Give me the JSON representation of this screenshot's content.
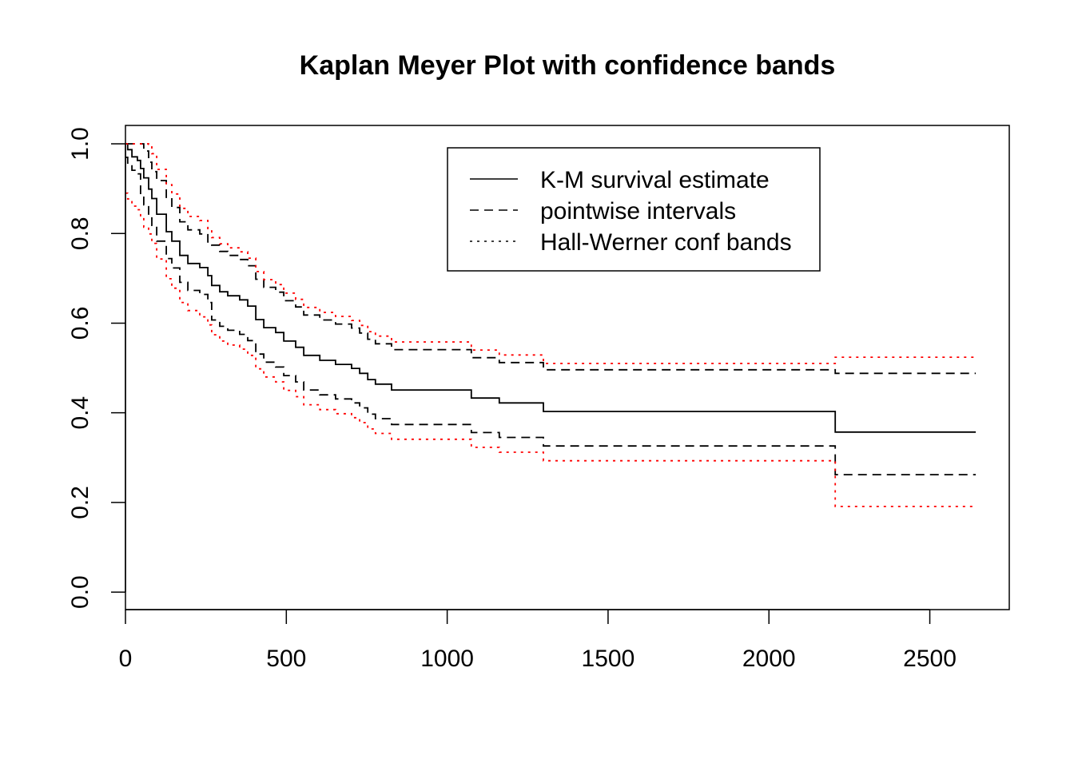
{
  "chart_data": {
    "type": "line",
    "title": "Kaplan Meyer Plot with confidence bands",
    "xlabel": "",
    "ylabel": "",
    "xlim": [
      0,
      2747
    ],
    "ylim": [
      -0.039,
      1.041
    ],
    "x_ticks": [
      0,
      500,
      1000,
      1500,
      2000,
      2500
    ],
    "x_tick_labels": [
      "0",
      "500",
      "1000",
      "1500",
      "2000",
      "2500"
    ],
    "y_ticks": [
      0,
      0.2,
      0.4,
      0.6,
      0.8,
      1.0
    ],
    "y_tick_labels": [
      "0.0",
      "0.2",
      "0.4",
      "0.6",
      "0.8",
      "1.0"
    ],
    "grid": false,
    "legend_position": "top-right",
    "step_times": [
      0,
      7,
      20,
      37,
      47,
      57,
      72,
      82,
      97,
      127,
      144,
      169,
      194,
      231,
      256,
      268,
      293,
      318,
      355,
      380,
      405,
      430,
      467,
      492,
      529,
      554,
      604,
      653,
      703,
      728,
      753,
      777,
      827,
      1075,
      1162,
      1299,
      2206
    ],
    "end_time": 2643,
    "series": [
      {
        "name": "K-M survival estimate",
        "style": "solid",
        "color": "#000000",
        "values": [
          1.0,
          0.987,
          0.971,
          0.963,
          0.945,
          0.924,
          0.899,
          0.878,
          0.843,
          0.804,
          0.783,
          0.751,
          0.733,
          0.724,
          0.706,
          0.684,
          0.67,
          0.661,
          0.652,
          0.638,
          0.608,
          0.59,
          0.579,
          0.56,
          0.546,
          0.528,
          0.517,
          0.508,
          0.499,
          0.488,
          0.474,
          0.464,
          0.451,
          0.433,
          0.422,
          0.403,
          0.357
        ]
      },
      {
        "name": "pointwise intervals (upper)",
        "style": "dashed",
        "color": "#000000",
        "values": [
          1,
          1,
          1,
          1,
          1,
          0.984,
          0.959,
          0.938,
          0.918,
          0.879,
          0.858,
          0.826,
          0.808,
          0.799,
          0.781,
          0.774,
          0.76,
          0.751,
          0.742,
          0.728,
          0.698,
          0.68,
          0.669,
          0.65,
          0.636,
          0.618,
          0.607,
          0.598,
          0.589,
          0.578,
          0.564,
          0.554,
          0.541,
          0.523,
          0.512,
          0.496,
          0.488
        ]
      },
      {
        "name": "pointwise intervals (lower)",
        "style": "dashed",
        "color": "#000000",
        "values": [
          0.97,
          0.957,
          0.941,
          0.933,
          0.885,
          0.864,
          0.839,
          0.818,
          0.783,
          0.744,
          0.723,
          0.691,
          0.673,
          0.664,
          0.646,
          0.607,
          0.593,
          0.584,
          0.575,
          0.561,
          0.531,
          0.513,
          0.502,
          0.483,
          0.469,
          0.451,
          0.44,
          0.431,
          0.422,
          0.411,
          0.397,
          0.387,
          0.374,
          0.356,
          0.345,
          0.326,
          0.262
        ]
      },
      {
        "name": "Hall-Werner conf bands (upper)",
        "style": "dotted",
        "color": "#ff0000",
        "values": [
          1,
          1,
          1,
          1,
          1,
          1,
          0.999,
          0.978,
          0.943,
          0.909,
          0.888,
          0.856,
          0.838,
          0.829,
          0.811,
          0.791,
          0.777,
          0.768,
          0.759,
          0.745,
          0.715,
          0.697,
          0.686,
          0.667,
          0.653,
          0.635,
          0.624,
          0.615,
          0.606,
          0.595,
          0.581,
          0.571,
          0.558,
          0.54,
          0.529,
          0.51,
          0.524
        ]
      },
      {
        "name": "Hall-Werner conf bands (lower)",
        "style": "dotted",
        "color": "#ff0000",
        "values": [
          0.89,
          0.877,
          0.861,
          0.853,
          0.835,
          0.814,
          0.799,
          0.778,
          0.743,
          0.699,
          0.678,
          0.646,
          0.628,
          0.614,
          0.596,
          0.574,
          0.56,
          0.551,
          0.542,
          0.528,
          0.498,
          0.48,
          0.469,
          0.45,
          0.436,
          0.418,
          0.407,
          0.398,
          0.389,
          0.378,
          0.364,
          0.354,
          0.341,
          0.323,
          0.312,
          0.293,
          0.191
        ]
      }
    ],
    "legend": [
      {
        "label": "K-M survival estimate",
        "style": "solid"
      },
      {
        "label": "pointwise intervals",
        "style": "dashed"
      },
      {
        "label": "Hall-Werner conf bands",
        "style": "dotted"
      }
    ]
  }
}
